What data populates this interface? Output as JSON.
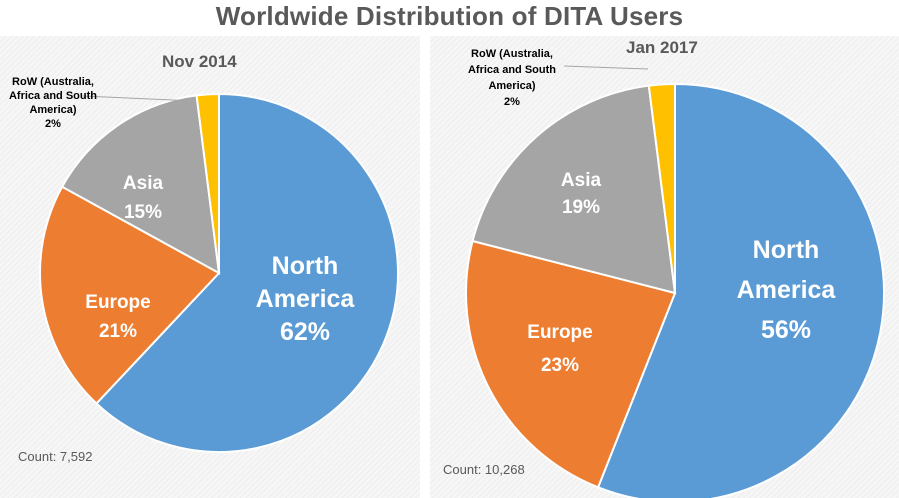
{
  "title": "Worldwide Distribution of DITA Users",
  "colors": {
    "north_america": "#5b9bd5",
    "europe": "#ed7d31",
    "asia": "#a5a5a5",
    "row": "#ffc000"
  },
  "chart_data": [
    {
      "type": "pie",
      "title": "Nov 2014",
      "count_text": "Count: 7,592",
      "slices": [
        {
          "label_lines": [
            "North",
            "America"
          ],
          "value_text": "62%",
          "value": 62,
          "color": "#5b9bd5"
        },
        {
          "label_lines": [
            "Europe"
          ],
          "value_text": "21%",
          "value": 21,
          "color": "#ed7d31"
        },
        {
          "label_lines": [
            "Asia"
          ],
          "value_text": "15%",
          "value": 15,
          "color": "#a5a5a5"
        },
        {
          "label_lines": [
            "RoW (Australia,",
            "Africa and South",
            "America)"
          ],
          "value_text": "2%",
          "value": 2,
          "color": "#ffc000"
        }
      ]
    },
    {
      "type": "pie",
      "title": "Jan 2017",
      "count_text": "Count: 10,268",
      "slices": [
        {
          "label_lines": [
            "North",
            "America"
          ],
          "value_text": "56%",
          "value": 56,
          "color": "#5b9bd5"
        },
        {
          "label_lines": [
            "Europe"
          ],
          "value_text": "23%",
          "value": 23,
          "color": "#ed7d31"
        },
        {
          "label_lines": [
            "Asia"
          ],
          "value_text": "19%",
          "value": 19,
          "color": "#a5a5a5"
        },
        {
          "label_lines": [
            "RoW (Australia,",
            "Africa and South",
            "America)"
          ],
          "value_text": "2%",
          "value": 2,
          "color": "#ffc000"
        }
      ]
    }
  ]
}
